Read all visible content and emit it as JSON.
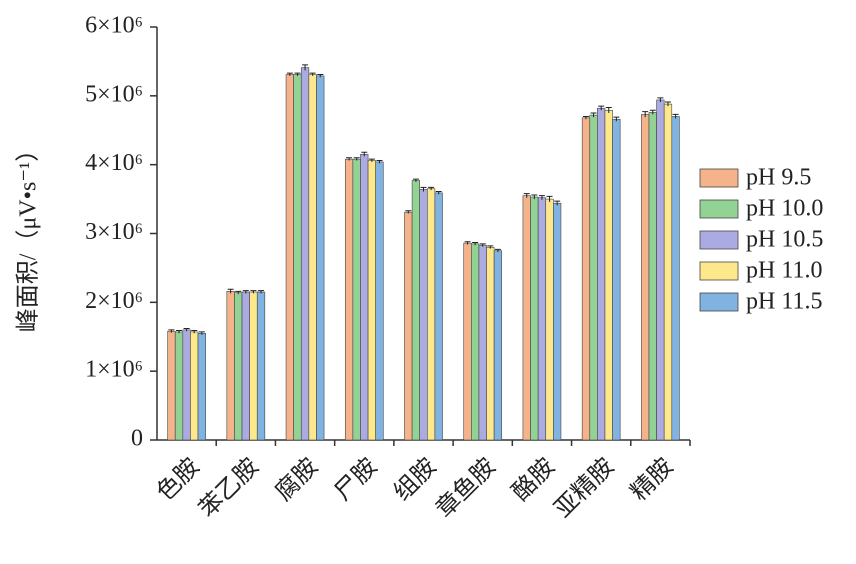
{
  "chart_data": {
    "type": "bar",
    "ylabel": "峰面积/（μV•s⁻¹）",
    "categories": [
      "色胺",
      "苯乙胺",
      "腐胺",
      "尸胺",
      "组胺",
      "章鱼胺",
      "酪胺",
      "亚精胺",
      "精胺"
    ],
    "series": [
      {
        "name": "pH 9.5",
        "color": "#f5b38c",
        "values": [
          1580000,
          2160000,
          5310000,
          4080000,
          3310000,
          2860000,
          3550000,
          4680000,
          4730000
        ],
        "errors": [
          20000,
          30000,
          20000,
          20000,
          20000,
          20000,
          30000,
          20000,
          40000
        ]
      },
      {
        "name": "pH 10.0",
        "color": "#92d294",
        "values": [
          1570000,
          2140000,
          5310000,
          4080000,
          3770000,
          2850000,
          3530000,
          4720000,
          4760000
        ],
        "errors": [
          20000,
          20000,
          20000,
          20000,
          20000,
          20000,
          30000,
          30000,
          30000
        ]
      },
      {
        "name": "pH 10.5",
        "color": "#ababe2",
        "values": [
          1600000,
          2150000,
          5410000,
          4150000,
          3640000,
          2830000,
          3520000,
          4820000,
          4940000
        ],
        "errors": [
          20000,
          20000,
          40000,
          30000,
          30000,
          20000,
          30000,
          30000,
          30000
        ]
      },
      {
        "name": "pH 11.0",
        "color": "#fde98b",
        "values": [
          1570000,
          2150000,
          5310000,
          4060000,
          3650000,
          2800000,
          3500000,
          4790000,
          4880000
        ],
        "errors": [
          20000,
          20000,
          20000,
          20000,
          20000,
          20000,
          40000,
          40000,
          30000
        ]
      },
      {
        "name": "pH 11.5",
        "color": "#80b2e2",
        "values": [
          1550000,
          2150000,
          5290000,
          4040000,
          3590000,
          2750000,
          3440000,
          4660000,
          4700000
        ],
        "errors": [
          20000,
          20000,
          20000,
          20000,
          20000,
          20000,
          30000,
          30000,
          30000
        ]
      }
    ],
    "ylim": [
      0,
      6000000
    ],
    "yticks": [
      0,
      {
        "value": 1000000,
        "label": "1×10⁶"
      },
      {
        "value": 2000000,
        "label": "2×10⁶"
      },
      {
        "value": 3000000,
        "label": "3×10⁶"
      },
      {
        "value": 4000000,
        "label": "4×10⁶"
      },
      {
        "value": 5000000,
        "label": "5×10⁶"
      },
      {
        "value": 6000000,
        "label": "6×10⁶"
      }
    ],
    "grid": false,
    "legend": "right"
  }
}
